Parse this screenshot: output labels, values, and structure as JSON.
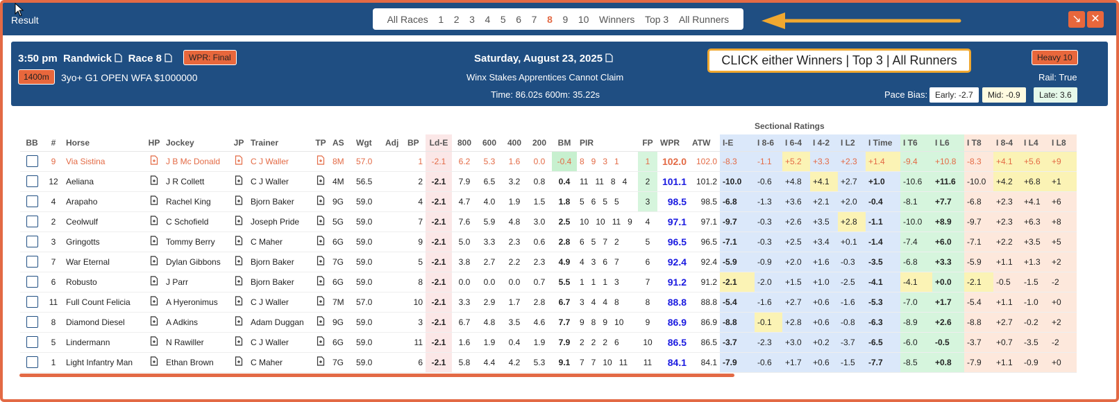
{
  "window": {
    "title": "Result",
    "shrink_label": "↘",
    "close_label": "✕"
  },
  "nav": {
    "items": [
      "All Races",
      "1",
      "2",
      "3",
      "4",
      "5",
      "6",
      "7",
      "8",
      "9",
      "10",
      "Winners",
      "Top 3",
      "All Runners"
    ],
    "active": "8"
  },
  "race": {
    "time": "3:50 pm",
    "venue": "Randwick",
    "race": "Race 8",
    "status_badge": "WPR: Final",
    "distance": "1400m",
    "conditions": "3yo+ G1 OPEN WFA $1000000",
    "date": "Saturday, August 23, 2025",
    "name": "Winx Stakes Apprentices Cannot Claim",
    "time_info": "Time: 86.02s  600m: 35.22s",
    "track": "Heavy 10",
    "rail": "Rail: True",
    "pace_bias_label": "Pace Bias:",
    "early": "Early: -2.7",
    "mid": "Mid: -0.9",
    "late": "Late: 3.6"
  },
  "callout": "CLICK either Winners | Top 3 | All Runners",
  "sectional_title": "Sectional Ratings",
  "columns": [
    "BB",
    "#",
    "Horse",
    "HP",
    "Jockey",
    "JP",
    "Trainer",
    "TP",
    "AS",
    "Wgt",
    "Adj",
    "BP",
    "Ld-E",
    "800",
    "600",
    "400",
    "200",
    "BM",
    "PIR",
    "FP",
    "WPR",
    "ATW",
    "I-E",
    "I 8-6",
    "I 6-4",
    "I 4-2",
    "I L2",
    "I Time",
    "I T6",
    "I L6",
    "I T8",
    "I 8-4",
    "I L4",
    "I L8"
  ],
  "rows": [
    {
      "no": "9",
      "horse": "Via Sistina",
      "jockey": "J B Mc Donald",
      "trainer": "C J Waller",
      "as": "8M",
      "wgt": "57.0",
      "adj": "",
      "bp": "1",
      "lde": "-2.1",
      "m800": "6.2",
      "m600": "5.3",
      "m400": "1.6",
      "m200": "0.0",
      "bm": "-0.4",
      "pir": [
        "8",
        "9",
        "3",
        "1"
      ],
      "fp": "1",
      "wpr": "102.0",
      "atw": "102.0",
      "ie": "-8.3",
      "i86": "-1.1",
      "i64": "+5.2",
      "i42": "+3.3",
      "il2": "+2.3",
      "itime": "+1.4",
      "it6": "-9.4",
      "il6": "+10.8",
      "it8": "-8.3",
      "i84": "+4.1",
      "il4": "+5.6",
      "il8": "+9"
    },
    {
      "no": "12",
      "horse": "Aeliana",
      "jockey": "J R Collett",
      "trainer": "C J Waller",
      "as": "4M",
      "wgt": "56.5",
      "adj": "",
      "bp": "2",
      "lde": "-2.1",
      "m800": "7.9",
      "m600": "6.5",
      "m400": "3.2",
      "m200": "0.8",
      "bm": "0.4",
      "pir": [
        "11",
        "11",
        "8",
        "4"
      ],
      "fp": "2",
      "wpr": "101.1",
      "atw": "101.2",
      "ie": "-10.0",
      "i86": "-0.6",
      "i64": "+4.8",
      "i42": "+4.1",
      "il2": "+2.7",
      "itime": "+1.0",
      "it6": "-10.6",
      "il6": "+11.6",
      "it8": "-10.0",
      "i84": "+4.2",
      "il4": "+6.8",
      "il8": "+1"
    },
    {
      "no": "4",
      "horse": "Arapaho",
      "jockey": "Rachel King",
      "trainer": "Bjorn Baker",
      "as": "9G",
      "wgt": "59.0",
      "adj": "",
      "bp": "4",
      "lde": "-2.1",
      "m800": "4.7",
      "m600": "4.0",
      "m400": "1.9",
      "m200": "1.5",
      "bm": "1.8",
      "pir": [
        "5",
        "6",
        "5",
        "5"
      ],
      "fp": "3",
      "wpr": "98.5",
      "atw": "98.5",
      "ie": "-6.8",
      "i86": "-1.3",
      "i64": "+3.6",
      "i42": "+2.1",
      "il2": "+2.0",
      "itime": "-0.4",
      "it6": "-8.1",
      "il6": "+7.7",
      "it8": "-6.8",
      "i84": "+2.3",
      "il4": "+4.1",
      "il8": "+6"
    },
    {
      "no": "2",
      "horse": "Ceolwulf",
      "jockey": "C Schofield",
      "trainer": "Joseph Pride",
      "as": "5G",
      "wgt": "59.0",
      "adj": "",
      "bp": "7",
      "lde": "-2.1",
      "m800": "7.6",
      "m600": "5.9",
      "m400": "4.8",
      "m200": "3.0",
      "bm": "2.5",
      "pir": [
        "10",
        "10",
        "11",
        "9"
      ],
      "fp": "4",
      "wpr": "97.1",
      "atw": "97.1",
      "ie": "-9.7",
      "i86": "-0.3",
      "i64": "+2.6",
      "i42": "+3.5",
      "il2": "+2.8",
      "itime": "-1.1",
      "it6": "-10.0",
      "il6": "+8.9",
      "it8": "-9.7",
      "i84": "+2.3",
      "il4": "+6.3",
      "il8": "+8"
    },
    {
      "no": "3",
      "horse": "Gringotts",
      "jockey": "Tommy Berry",
      "trainer": "C Maher",
      "as": "6G",
      "wgt": "59.0",
      "adj": "",
      "bp": "9",
      "lde": "-2.1",
      "m800": "5.0",
      "m600": "3.3",
      "m400": "2.3",
      "m200": "0.6",
      "bm": "2.8",
      "pir": [
        "6",
        "5",
        "7",
        "2"
      ],
      "fp": "5",
      "wpr": "96.5",
      "atw": "96.5",
      "ie": "-7.1",
      "i86": "-0.3",
      "i64": "+2.5",
      "i42": "+3.4",
      "il2": "+0.1",
      "itime": "-1.4",
      "it6": "-7.4",
      "il6": "+6.0",
      "it8": "-7.1",
      "i84": "+2.2",
      "il4": "+3.5",
      "il8": "+5"
    },
    {
      "no": "7",
      "horse": "War Eternal",
      "jockey": "Dylan Gibbons",
      "trainer": "Bjorn Baker",
      "as": "7G",
      "wgt": "59.0",
      "adj": "",
      "bp": "5",
      "lde": "-2.1",
      "m800": "3.8",
      "m600": "2.7",
      "m400": "2.2",
      "m200": "2.3",
      "bm": "4.9",
      "pir": [
        "4",
        "3",
        "6",
        "7"
      ],
      "fp": "6",
      "wpr": "92.4",
      "atw": "92.4",
      "ie": "-5.9",
      "i86": "-0.9",
      "i64": "+2.0",
      "i42": "+1.6",
      "il2": "-0.3",
      "itime": "-3.5",
      "it6": "-6.8",
      "il6": "+3.3",
      "it8": "-5.9",
      "i84": "+1.1",
      "il4": "+1.3",
      "il8": "+2"
    },
    {
      "no": "6",
      "horse": "Robusto",
      "jockey": "J Parr",
      "trainer": "Bjorn Baker",
      "as": "6G",
      "wgt": "59.0",
      "adj": "",
      "bp": "8",
      "lde": "-2.1",
      "m800": "0.0",
      "m600": "0.0",
      "m400": "0.0",
      "m200": "0.7",
      "bm": "5.5",
      "pir": [
        "1",
        "1",
        "1",
        "3"
      ],
      "fp": "7",
      "wpr": "91.2",
      "atw": "91.2",
      "ie": "-2.1",
      "i86": "-2.0",
      "i64": "+1.5",
      "i42": "+1.0",
      "il2": "-2.5",
      "itime": "-4.1",
      "it6": "-4.1",
      "il6": "+0.0",
      "it8": "-2.1",
      "i84": "-0.5",
      "il4": "-1.5",
      "il8": "-2"
    },
    {
      "no": "11",
      "horse": "Full Count Felicia",
      "jockey": "A Hyeronimus",
      "trainer": "C J Waller",
      "as": "7M",
      "wgt": "57.0",
      "adj": "",
      "bp": "10",
      "lde": "-2.1",
      "m800": "3.3",
      "m600": "2.9",
      "m400": "1.7",
      "m200": "2.8",
      "bm": "6.7",
      "pir": [
        "3",
        "4",
        "4",
        "8"
      ],
      "fp": "8",
      "wpr": "88.8",
      "atw": "88.8",
      "ie": "-5.4",
      "i86": "-1.6",
      "i64": "+2.7",
      "i42": "+0.6",
      "il2": "-1.6",
      "itime": "-5.3",
      "it6": "-7.0",
      "il6": "+1.7",
      "it8": "-5.4",
      "i84": "+1.1",
      "il4": "-1.0",
      "il8": "+0"
    },
    {
      "no": "8",
      "horse": "Diamond Diesel",
      "jockey": "A Adkins",
      "trainer": "Adam Duggan",
      "as": "9G",
      "wgt": "59.0",
      "adj": "",
      "bp": "3",
      "lde": "-2.1",
      "m800": "6.7",
      "m600": "4.8",
      "m400": "3.5",
      "m200": "4.6",
      "bm": "7.7",
      "pir": [
        "9",
        "8",
        "9",
        "10"
      ],
      "fp": "9",
      "wpr": "86.9",
      "atw": "86.9",
      "ie": "-8.8",
      "i86": "-0.1",
      "i64": "+2.8",
      "i42": "+0.6",
      "il2": "-0.8",
      "itime": "-6.3",
      "it6": "-8.9",
      "il6": "+2.6",
      "it8": "-8.8",
      "i84": "+2.7",
      "il4": "-0.2",
      "il8": "+2"
    },
    {
      "no": "5",
      "horse": "Lindermann",
      "jockey": "N Rawiller",
      "trainer": "C J Waller",
      "as": "6G",
      "wgt": "59.0",
      "adj": "",
      "bp": "11",
      "lde": "-2.1",
      "m800": "1.6",
      "m600": "1.9",
      "m400": "0.4",
      "m200": "1.9",
      "bm": "7.9",
      "pir": [
        "2",
        "2",
        "2",
        "6"
      ],
      "fp": "10",
      "wpr": "86.5",
      "atw": "86.5",
      "ie": "-3.7",
      "i86": "-2.3",
      "i64": "+3.0",
      "i42": "+0.2",
      "il2": "-3.7",
      "itime": "-6.5",
      "it6": "-6.0",
      "il6": "-0.5",
      "it8": "-3.7",
      "i84": "+0.7",
      "il4": "-3.5",
      "il8": "-2"
    },
    {
      "no": "1",
      "horse": "Light Infantry Man",
      "jockey": "Ethan Brown",
      "trainer": "C Maher",
      "as": "7G",
      "wgt": "59.0",
      "adj": "",
      "bp": "6",
      "lde": "-2.1",
      "m800": "5.8",
      "m600": "4.4",
      "m400": "4.2",
      "m200": "5.3",
      "bm": "9.1",
      "pir": [
        "7",
        "7",
        "10",
        "11"
      ],
      "fp": "11",
      "wpr": "84.1",
      "atw": "84.1",
      "ie": "-7.9",
      "i86": "-0.6",
      "i64": "+1.7",
      "i42": "+0.6",
      "il2": "-1.5",
      "itime": "-7.7",
      "it6": "-8.5",
      "il6": "+0.8",
      "it8": "-7.9",
      "i84": "+1.1",
      "il4": "-0.9",
      "il8": "+0"
    }
  ],
  "highlights": {
    "yellow": [
      [
        0,
        "i64"
      ],
      [
        0,
        "itime"
      ],
      [
        1,
        "i42"
      ],
      [
        3,
        "il2"
      ],
      [
        6,
        "ie"
      ],
      [
        6,
        "it6"
      ],
      [
        6,
        "it8"
      ],
      [
        8,
        "i86"
      ],
      [
        0,
        "i84"
      ],
      [
        0,
        "il4"
      ],
      [
        0,
        "il8"
      ],
      [
        1,
        "i84"
      ],
      [
        1,
        "il4"
      ],
      [
        1,
        "il8"
      ]
    ],
    "bm_green_row": 0,
    "fp_green_rows": [
      0,
      1,
      2
    ],
    "highlight_row": 0
  },
  "colors": {
    "accent": "#e36a45",
    "header_bg": "#1f4e82",
    "wpr_blue": "#1a1ae0"
  }
}
